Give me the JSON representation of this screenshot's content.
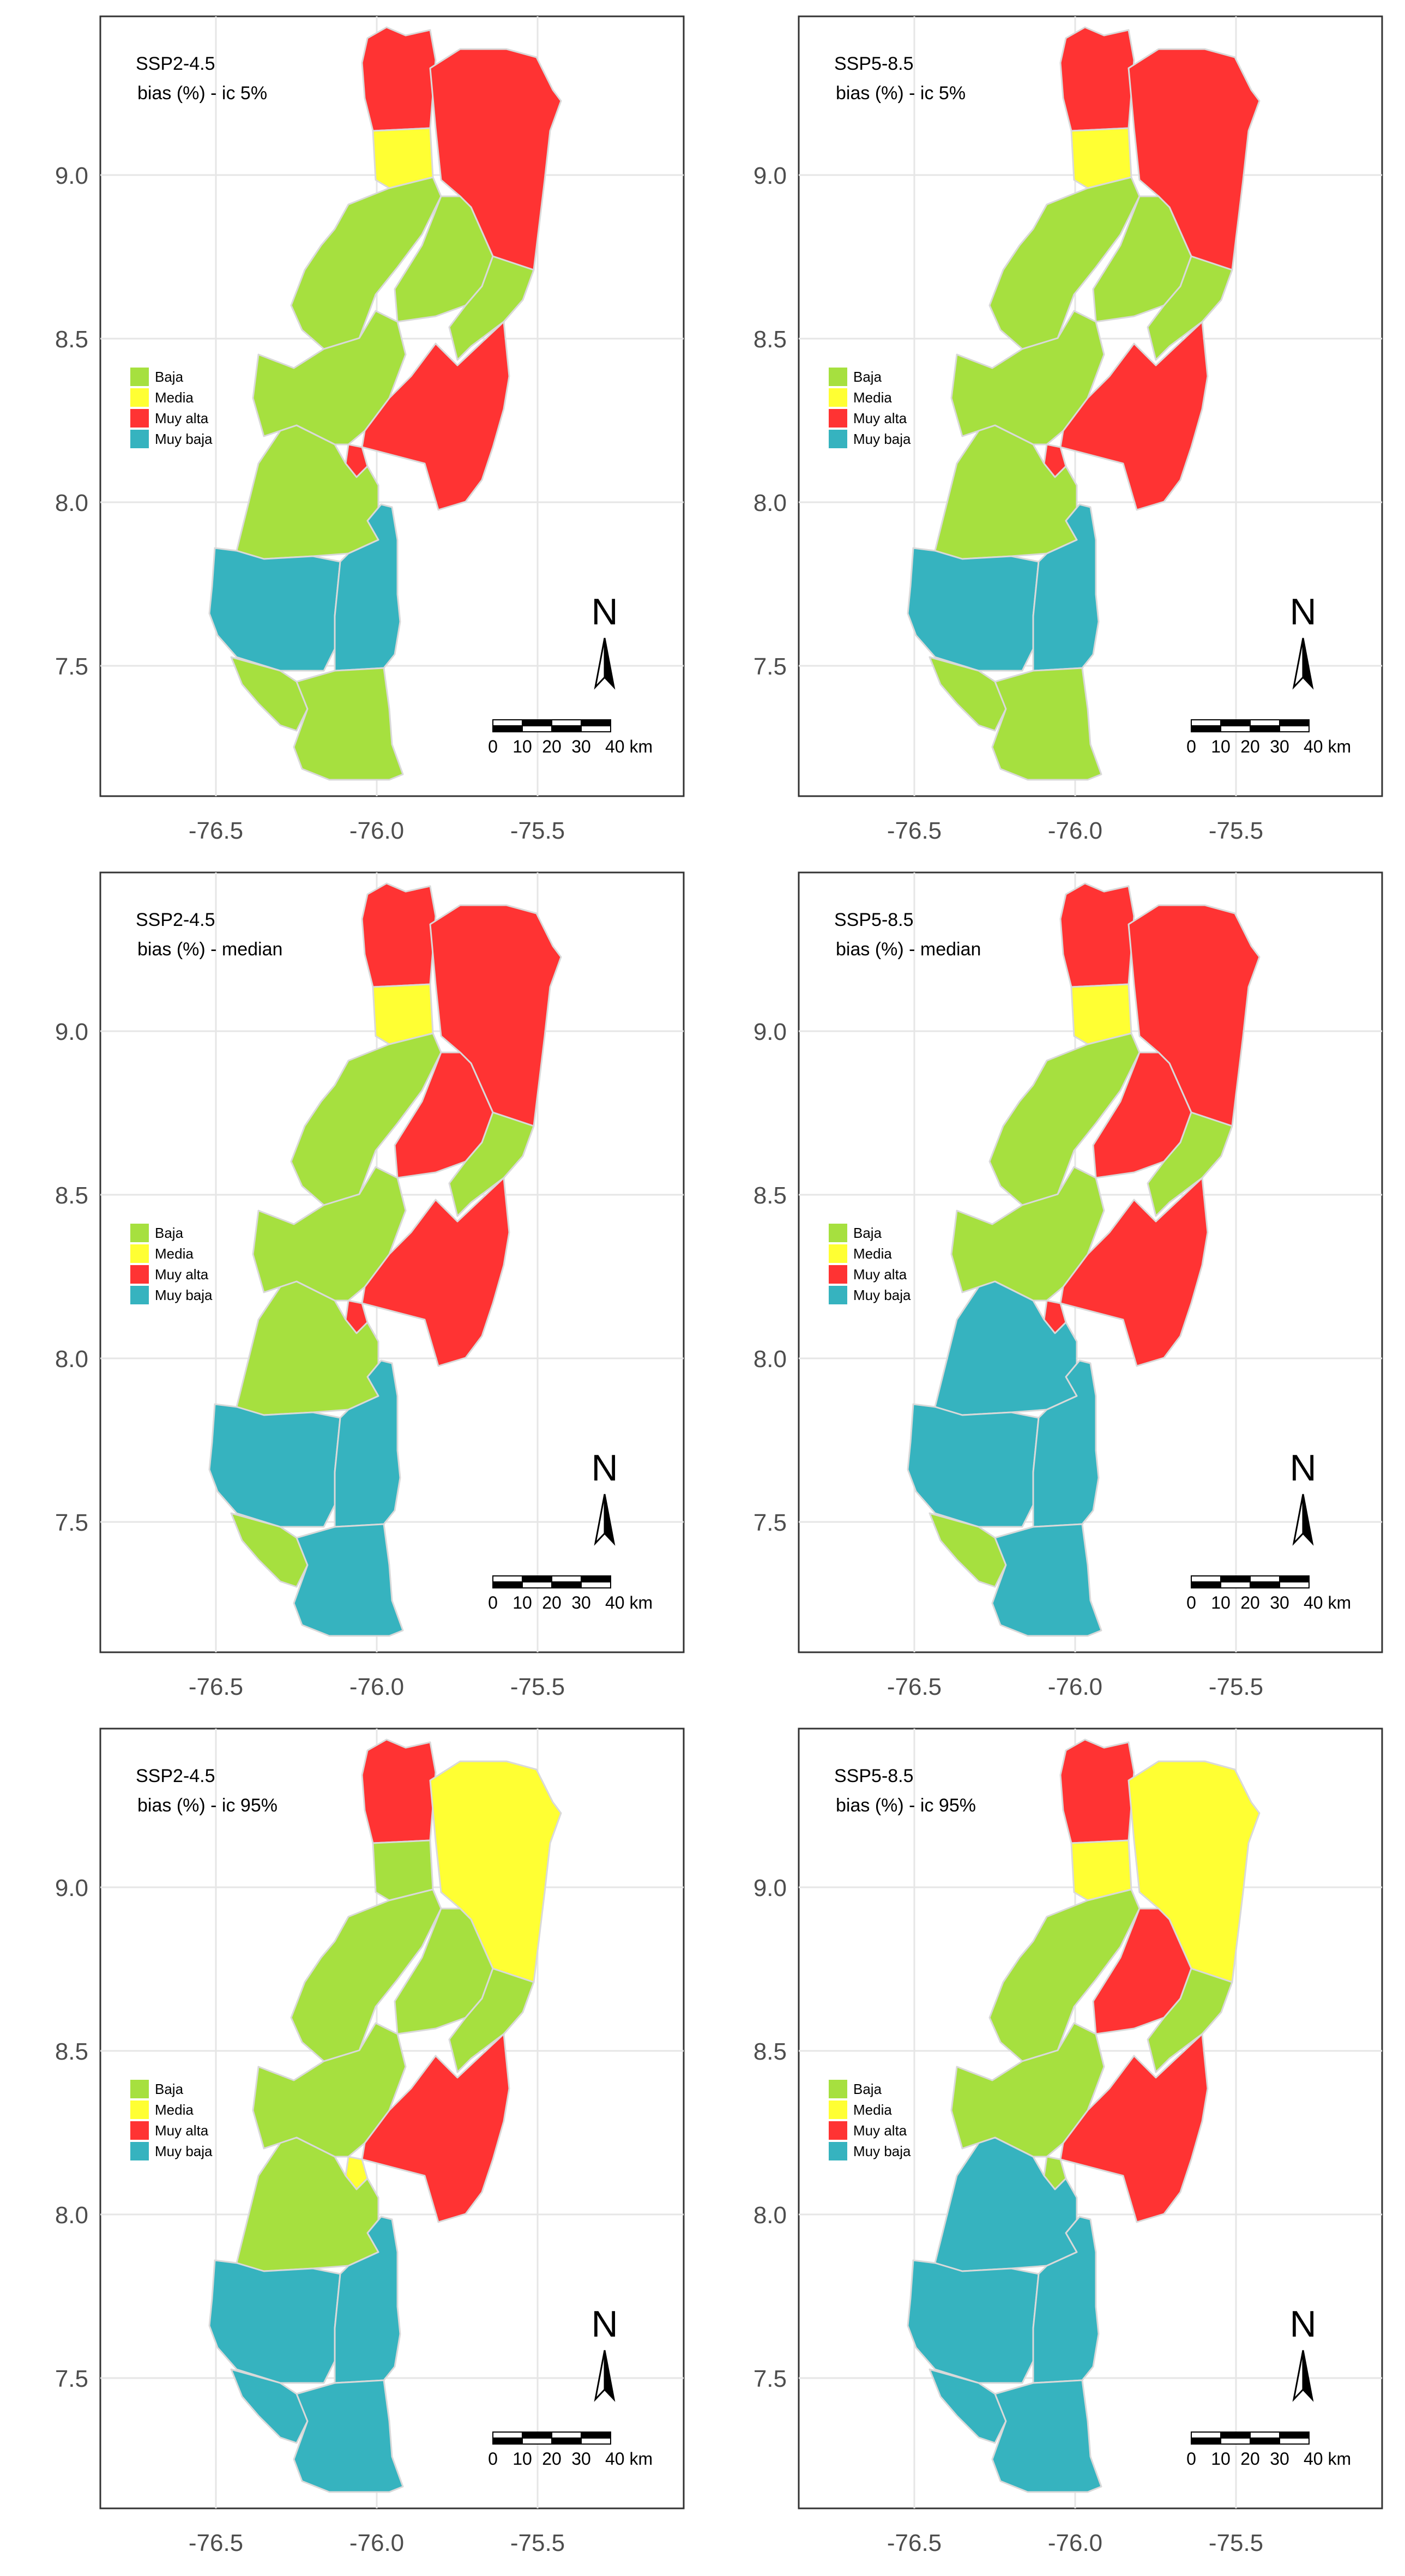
{
  "legend": [
    {
      "key": "baja",
      "label": "Baja",
      "color": "#a6e03f"
    },
    {
      "key": "media",
      "label": "Media",
      "color": "#ffff33"
    },
    {
      "key": "muy_alta",
      "label": "Muy alta",
      "color": "#ff3333"
    },
    {
      "key": "muy_baja",
      "label": "Muy baja",
      "color": "#36b3bf"
    }
  ],
  "axes": {
    "x_ticks": [
      "-76.5",
      "-76.0",
      "-75.5"
    ],
    "y_ticks": [
      "9.0",
      "8.5",
      "8.0",
      "7.5"
    ]
  },
  "north_label": "N",
  "scale_bar": {
    "labels": [
      "0",
      "10",
      "20",
      "30",
      "40 km"
    ]
  },
  "panels": [
    {
      "scenario": "SSP2-4.5",
      "metric": "bias (%) - ic 5%",
      "classes": {
        "north_w": "muy_alta",
        "north_e": "muy_alta",
        "n_yellow": "media",
        "upper_w": "baja",
        "upper_mid": "baja",
        "center_e": "baja",
        "center_red": "muy_alta",
        "small_red": "muy_alta",
        "mid_w": "baja",
        "mid_s": "baja",
        "south_w": "muy_baja",
        "south_e": "muy_baja",
        "tip_w": "baja",
        "tip_e": "baja"
      }
    },
    {
      "scenario": "SSP5-8.5",
      "metric": "bias (%) - ic 5%",
      "classes": {
        "north_w": "muy_alta",
        "north_e": "muy_alta",
        "n_yellow": "media",
        "upper_w": "baja",
        "upper_mid": "baja",
        "center_e": "baja",
        "center_red": "muy_alta",
        "small_red": "muy_alta",
        "mid_w": "baja",
        "mid_s": "baja",
        "south_w": "muy_baja",
        "south_e": "muy_baja",
        "tip_w": "baja",
        "tip_e": "baja"
      }
    },
    {
      "scenario": "SSP2-4.5",
      "metric": "bias (%) - median",
      "classes": {
        "north_w": "muy_alta",
        "north_e": "muy_alta",
        "n_yellow": "media",
        "upper_w": "baja",
        "upper_mid": "muy_alta",
        "center_e": "baja",
        "center_red": "muy_alta",
        "small_red": "muy_alta",
        "mid_w": "baja",
        "mid_s": "baja",
        "south_w": "muy_baja",
        "south_e": "muy_baja",
        "tip_w": "baja",
        "tip_e": "muy_baja"
      }
    },
    {
      "scenario": "SSP5-8.5",
      "metric": "bias (%) - median",
      "classes": {
        "north_w": "muy_alta",
        "north_e": "muy_alta",
        "n_yellow": "media",
        "upper_w": "baja",
        "upper_mid": "muy_alta",
        "center_e": "baja",
        "center_red": "muy_alta",
        "small_red": "muy_alta",
        "mid_w": "baja",
        "mid_s": "muy_baja",
        "south_w": "muy_baja",
        "south_e": "muy_baja",
        "tip_w": "baja",
        "tip_e": "muy_baja"
      }
    },
    {
      "scenario": "SSP2-4.5",
      "metric": "bias (%) - ic 95%",
      "classes": {
        "north_w": "muy_alta",
        "north_e": "media",
        "n_yellow": "baja",
        "upper_w": "baja",
        "upper_mid": "baja",
        "center_e": "baja",
        "center_red": "muy_alta",
        "small_red": "media",
        "mid_w": "baja",
        "mid_s": "baja",
        "south_w": "muy_baja",
        "south_e": "muy_baja",
        "tip_w": "muy_baja",
        "tip_e": "muy_baja"
      }
    },
    {
      "scenario": "SSP5-8.5",
      "metric": "bias (%) - ic 95%",
      "classes": {
        "north_w": "muy_alta",
        "north_e": "media",
        "n_yellow": "media",
        "upper_w": "baja",
        "upper_mid": "muy_alta",
        "center_e": "baja",
        "center_red": "muy_alta",
        "small_red": "baja",
        "mid_w": "baja",
        "mid_s": "muy_baja",
        "south_w": "muy_baja",
        "south_e": "muy_baja",
        "tip_w": "muy_baja",
        "tip_e": "muy_baja"
      }
    }
  ]
}
